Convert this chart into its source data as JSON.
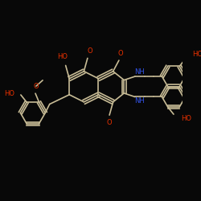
{
  "bg_color": "#080808",
  "bond_color": "#c8bc96",
  "lw": 1.2,
  "OR": "#e83000",
  "NB": "#3355ee",
  "figsize": [
    2.5,
    2.5
  ],
  "dpi": 100,
  "xlim": [
    0,
    250
  ],
  "ylim": [
    0,
    250
  ]
}
